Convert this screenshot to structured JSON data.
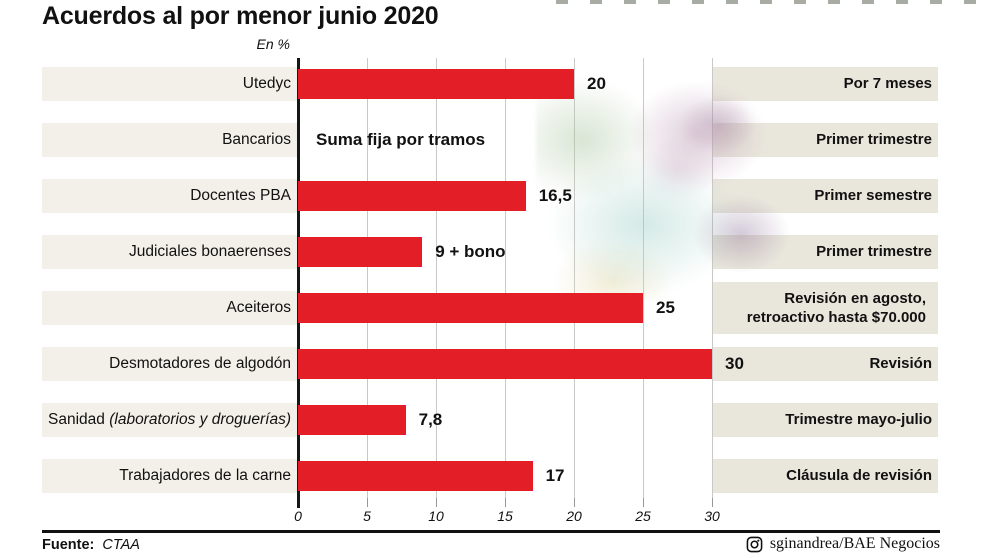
{
  "header": {
    "title": "Acuerdos al por menor junio 2020",
    "units_label": "En %"
  },
  "colors": {
    "bar": "#e41e26",
    "band_left": "#f2f0e8",
    "band_right": "#e9e6dc",
    "grid": "#cbc9c6",
    "axis": "#161616"
  },
  "chart_data": {
    "type": "bar",
    "orientation": "horizontal",
    "title": "Acuerdos al por menor junio 2020",
    "xlabel": "",
    "ylabel": "En %",
    "xlim": [
      0,
      30
    ],
    "x_ticks": [
      "0",
      "5",
      "10",
      "15",
      "20",
      "25",
      "30"
    ],
    "grid": true,
    "rows": [
      {
        "category": "Utedyc",
        "value": 20,
        "value_label": "20",
        "period": "Por 7 meses"
      },
      {
        "category": "Bancarios",
        "value": null,
        "value_label": null,
        "note": "Suma fija por tramos",
        "period": "Primer trimestre"
      },
      {
        "category": "Docentes PBA",
        "value": 16.5,
        "value_label": "16,5",
        "period": "Primer semestre"
      },
      {
        "category": "Judiciales bonaerenses",
        "value": 9,
        "value_label": "9 + bono",
        "period": "Primer trimestre"
      },
      {
        "category": "Aceiteros",
        "value": 25,
        "value_label": "25",
        "period": "Revisión en agosto,\nretroactivo hasta $70.000"
      },
      {
        "category": "Desmotadores de algodón",
        "value": 30,
        "value_label": "30",
        "period": "Revisión"
      },
      {
        "category": "Sanidad",
        "category_italic": "(laboratorios y droguerías)",
        "value": 7.8,
        "value_label": "7,8",
        "period": "Trimestre mayo-julio"
      },
      {
        "category": "Trabajadores de la carne",
        "value": 17,
        "value_label": "17",
        "period": "Cláusula de revisión"
      }
    ]
  },
  "footer": {
    "source_label": "Fuente:",
    "source": "CTAA",
    "credit": "sginandrea/BAE Negocios",
    "credit_icon": "instagram-icon"
  }
}
